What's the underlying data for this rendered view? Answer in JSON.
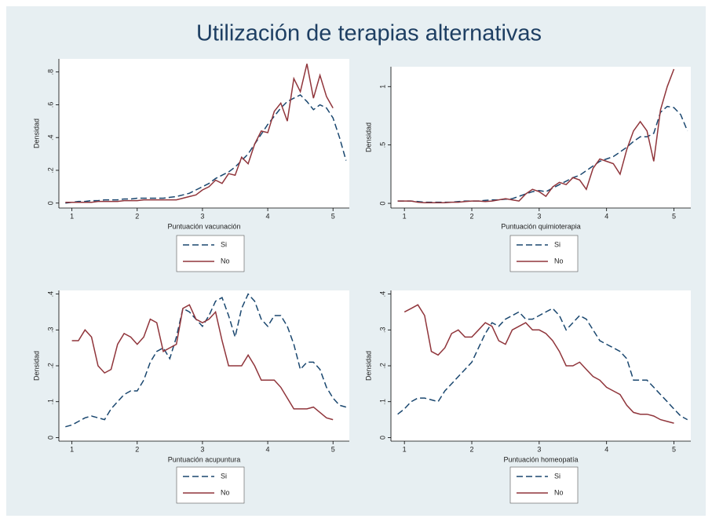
{
  "title": "Utilización de terapias alternativas",
  "chart_data": [
    {
      "type": "line",
      "xlabel": "Puntuación vacunación",
      "ylabel": "Densidad",
      "x": [
        0.9,
        1.0,
        1.1,
        1.2,
        1.3,
        1.4,
        1.5,
        1.6,
        1.7,
        1.8,
        1.9,
        2.0,
        2.1,
        2.2,
        2.3,
        2.4,
        2.5,
        2.6,
        2.7,
        2.8,
        2.9,
        3.0,
        3.1,
        3.2,
        3.3,
        3.4,
        3.5,
        3.6,
        3.7,
        3.8,
        3.9,
        4.0,
        4.1,
        4.2,
        4.3,
        4.4,
        4.5,
        4.6,
        4.7,
        4.8,
        4.9,
        5.0,
        5.1,
        5.2
      ],
      "xlim": [
        0.8,
        5.25
      ],
      "xticks": [
        1,
        2,
        3,
        4,
        5
      ],
      "ylim": [
        -0.03,
        0.88
      ],
      "yticks": [
        0,
        {
          "value": 0.2,
          "label": ".2"
        },
        {
          "value": 0.4,
          "label": ".4"
        },
        {
          "value": 0.6,
          "label": ".6"
        },
        {
          "value": 0.8,
          "label": ".8"
        }
      ],
      "grid": false,
      "series": [
        {
          "name": "Si",
          "color": "#1a476f",
          "dash": true,
          "values": [
            0.0,
            0.005,
            0.01,
            0.01,
            0.015,
            0.015,
            0.02,
            0.02,
            0.02,
            0.025,
            0.025,
            0.03,
            0.03,
            0.03,
            0.03,
            0.03,
            0.035,
            0.04,
            0.05,
            0.06,
            0.08,
            0.1,
            0.12,
            0.15,
            0.17,
            0.19,
            0.22,
            0.26,
            0.3,
            0.36,
            0.42,
            0.48,
            0.53,
            0.58,
            0.62,
            0.64,
            0.66,
            0.62,
            0.57,
            0.6,
            0.58,
            0.52,
            0.4,
            0.26
          ]
        },
        {
          "name": "No",
          "color": "#90353b",
          "dash": false,
          "values": [
            0.005,
            0.005,
            0.005,
            0.005,
            0.005,
            0.01,
            0.01,
            0.01,
            0.01,
            0.015,
            0.015,
            0.015,
            0.02,
            0.02,
            0.02,
            0.02,
            0.02,
            0.02,
            0.03,
            0.04,
            0.05,
            0.08,
            0.1,
            0.14,
            0.12,
            0.18,
            0.17,
            0.28,
            0.24,
            0.36,
            0.44,
            0.43,
            0.56,
            0.61,
            0.5,
            0.76,
            0.68,
            0.85,
            0.64,
            0.78,
            0.65,
            0.58,
            null,
            null
          ]
        }
      ]
    },
    {
      "type": "line",
      "xlabel": "Puntuación quimioterapia",
      "ylabel": "Densidad",
      "x": [
        0.9,
        1.0,
        1.1,
        1.2,
        1.3,
        1.4,
        1.5,
        1.6,
        1.7,
        1.8,
        1.9,
        2.0,
        2.1,
        2.2,
        2.3,
        2.4,
        2.5,
        2.6,
        2.7,
        2.8,
        2.9,
        3.0,
        3.1,
        3.2,
        3.3,
        3.4,
        3.5,
        3.6,
        3.7,
        3.8,
        3.9,
        4.0,
        4.1,
        4.2,
        4.3,
        4.4,
        4.5,
        4.6,
        4.7,
        4.8,
        4.9,
        5.0,
        5.1,
        5.2
      ],
      "xlim": [
        0.8,
        5.25
      ],
      "xticks": [
        1,
        2,
        3,
        4,
        5
      ],
      "ylim": [
        -0.04,
        1.17
      ],
      "yticks": [
        0,
        {
          "value": 0.5,
          "label": ".5"
        },
        1
      ],
      "grid": false,
      "series": [
        {
          "name": "Si",
          "color": "#1a476f",
          "dash": true,
          "values": [
            0.02,
            0.02,
            0.02,
            0.015,
            0.01,
            0.01,
            0.01,
            0.01,
            0.01,
            0.015,
            0.02,
            0.02,
            0.02,
            0.025,
            0.03,
            0.03,
            0.035,
            0.04,
            0.06,
            0.08,
            0.1,
            0.11,
            0.1,
            0.13,
            0.16,
            0.19,
            0.22,
            0.24,
            0.28,
            0.32,
            0.36,
            0.38,
            0.4,
            0.44,
            0.48,
            0.53,
            0.57,
            0.57,
            0.6,
            0.78,
            0.83,
            0.82,
            0.76,
            0.62
          ]
        },
        {
          "name": "No",
          "color": "#90353b",
          "dash": false,
          "values": [
            0.02,
            0.02,
            0.02,
            0.01,
            0.005,
            0.005,
            0.005,
            0.005,
            0.01,
            0.01,
            0.015,
            0.02,
            0.02,
            0.015,
            0.02,
            0.03,
            0.04,
            0.03,
            0.02,
            0.08,
            0.12,
            0.1,
            0.06,
            0.14,
            0.18,
            0.16,
            0.22,
            0.2,
            0.12,
            0.3,
            0.38,
            0.36,
            0.34,
            0.25,
            0.46,
            0.62,
            0.7,
            0.62,
            0.36,
            0.8,
            1.0,
            1.15,
            null,
            null
          ]
        }
      ]
    },
    {
      "type": "line",
      "xlabel": "Puntuación acupuntura",
      "ylabel": "Densidad",
      "x": [
        0.9,
        1.0,
        1.1,
        1.2,
        1.3,
        1.4,
        1.5,
        1.6,
        1.7,
        1.8,
        1.9,
        2.0,
        2.1,
        2.2,
        2.3,
        2.4,
        2.5,
        2.6,
        2.7,
        2.8,
        2.9,
        3.0,
        3.1,
        3.2,
        3.3,
        3.4,
        3.5,
        3.6,
        3.7,
        3.8,
        3.9,
        4.0,
        4.1,
        4.2,
        4.3,
        4.4,
        4.5,
        4.6,
        4.7,
        4.8,
        4.9,
        5.0,
        5.1,
        5.2
      ],
      "xlim": [
        0.8,
        5.25
      ],
      "xticks": [
        1,
        2,
        3,
        4,
        5
      ],
      "ylim": [
        -0.01,
        0.41
      ],
      "yticks": [
        0,
        {
          "value": 0.1,
          "label": ".1"
        },
        {
          "value": 0.2,
          "label": ".2"
        },
        {
          "value": 0.3,
          "label": ".3"
        },
        {
          "value": 0.4,
          "label": ".4"
        }
      ],
      "grid": false,
      "series": [
        {
          "name": "Si",
          "color": "#1a476f",
          "dash": true,
          "values": [
            0.03,
            0.035,
            0.045,
            0.055,
            0.06,
            0.055,
            0.05,
            0.08,
            0.1,
            0.12,
            0.13,
            0.13,
            0.16,
            0.21,
            0.24,
            0.25,
            0.22,
            0.28,
            0.36,
            0.35,
            0.33,
            0.31,
            0.34,
            0.38,
            0.39,
            0.34,
            0.28,
            0.36,
            0.4,
            0.38,
            0.33,
            0.31,
            0.34,
            0.34,
            0.31,
            0.26,
            0.19,
            0.21,
            0.21,
            0.19,
            0.14,
            0.11,
            0.09,
            0.085
          ]
        },
        {
          "name": "No",
          "color": "#90353b",
          "dash": false,
          "values": [
            null,
            0.27,
            0.27,
            0.3,
            0.28,
            0.2,
            0.18,
            0.19,
            0.26,
            0.29,
            0.28,
            0.26,
            0.28,
            0.33,
            0.32,
            0.24,
            0.25,
            0.26,
            0.36,
            0.37,
            0.33,
            0.32,
            0.33,
            0.35,
            0.27,
            0.2,
            0.2,
            0.2,
            0.23,
            0.2,
            0.16,
            0.16,
            0.16,
            0.14,
            0.11,
            0.08,
            0.08,
            0.08,
            0.085,
            0.07,
            0.055,
            0.05,
            null,
            null
          ]
        }
      ]
    },
    {
      "type": "line",
      "xlabel": "Puntuación homeopatía",
      "ylabel": "Densidad",
      "x": [
        0.9,
        1.0,
        1.1,
        1.2,
        1.3,
        1.4,
        1.5,
        1.6,
        1.7,
        1.8,
        1.9,
        2.0,
        2.1,
        2.2,
        2.3,
        2.4,
        2.5,
        2.6,
        2.7,
        2.8,
        2.9,
        3.0,
        3.1,
        3.2,
        3.3,
        3.4,
        3.5,
        3.6,
        3.7,
        3.8,
        3.9,
        4.0,
        4.1,
        4.2,
        4.3,
        4.4,
        4.5,
        4.6,
        4.7,
        4.8,
        4.9,
        5.0,
        5.1,
        5.2
      ],
      "xlim": [
        0.8,
        5.25
      ],
      "xticks": [
        1,
        2,
        3,
        4,
        5
      ],
      "ylim": [
        -0.01,
        0.41
      ],
      "yticks": [
        0,
        {
          "value": 0.1,
          "label": ".1"
        },
        {
          "value": 0.2,
          "label": ".2"
        },
        {
          "value": 0.3,
          "label": ".3"
        },
        {
          "value": 0.4,
          "label": ".4"
        }
      ],
      "grid": false,
      "series": [
        {
          "name": "Si",
          "color": "#1a476f",
          "dash": true,
          "values": [
            0.065,
            0.08,
            0.1,
            0.11,
            0.11,
            0.105,
            0.1,
            0.13,
            0.15,
            0.17,
            0.19,
            0.21,
            0.25,
            0.29,
            0.32,
            0.31,
            0.33,
            0.34,
            0.35,
            0.33,
            0.33,
            0.34,
            0.35,
            0.36,
            0.34,
            0.3,
            0.32,
            0.34,
            0.33,
            0.3,
            0.27,
            0.26,
            0.25,
            0.24,
            0.22,
            0.16,
            0.16,
            0.16,
            0.14,
            0.12,
            0.1,
            0.08,
            0.06,
            0.05
          ]
        },
        {
          "name": "No",
          "color": "#90353b",
          "dash": false,
          "values": [
            null,
            0.35,
            0.36,
            0.37,
            0.34,
            0.24,
            0.23,
            0.25,
            0.29,
            0.3,
            0.28,
            0.28,
            0.3,
            0.32,
            0.31,
            0.27,
            0.26,
            0.3,
            0.31,
            0.32,
            0.3,
            0.3,
            0.29,
            0.27,
            0.24,
            0.2,
            0.2,
            0.21,
            0.19,
            0.17,
            0.16,
            0.14,
            0.13,
            0.12,
            0.09,
            0.07,
            0.065,
            0.065,
            0.06,
            0.05,
            0.045,
            0.04,
            null,
            null
          ]
        }
      ]
    }
  ]
}
